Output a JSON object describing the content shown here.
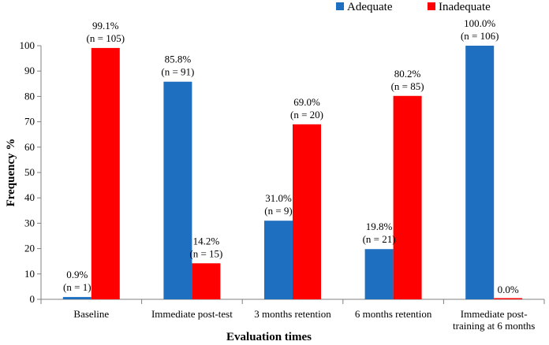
{
  "chart_data": {
    "type": "bar",
    "categories": [
      [
        "Baseline"
      ],
      [
        "Immediate post-test"
      ],
      [
        "3 months retention"
      ],
      [
        "6 months retention"
      ],
      [
        "Immediate post-",
        "training at 6 months"
      ]
    ],
    "series": [
      {
        "name": "Adequate",
        "color": "#1F6FC0",
        "values": [
          0.9,
          85.8,
          31.0,
          19.8,
          100.0
        ],
        "labels": [
          [
            "0.9%",
            "(n = 1)"
          ],
          [
            "85.8%",
            "(n = 91)"
          ],
          [
            "31.0%",
            "(n = 9)"
          ],
          [
            "19.8%",
            "(n = 21)"
          ],
          [
            "100.0%",
            "(n = 106)"
          ]
        ]
      },
      {
        "name": "Inadequate",
        "color": "#FF0000",
        "values": [
          99.1,
          14.2,
          69.0,
          80.2,
          0.0
        ],
        "labels": [
          [
            "99.1%",
            "(n = 105)"
          ],
          [
            "14.2%",
            "(n = 15)"
          ],
          [
            "69.0%",
            "(n = 20)"
          ],
          [
            "80.2%",
            "(n = 85)"
          ],
          [
            "0.0%"
          ]
        ]
      }
    ],
    "xlabel": "Evaluation times",
    "ylabel": "Frequency %",
    "ylim": [
      0,
      100
    ],
    "yticks": [
      "0",
      "10",
      "20",
      "30",
      "40",
      "50",
      "60",
      "70",
      "80",
      "90",
      "100"
    ],
    "legend_position": "top-right",
    "grid": false
  }
}
